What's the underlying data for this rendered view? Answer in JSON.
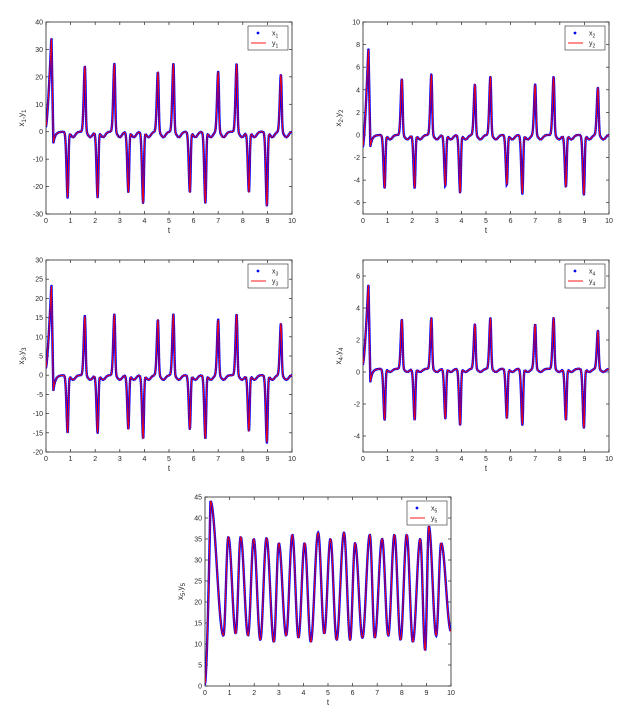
{
  "chart_data": [
    {
      "type": "line",
      "xlabel": "t",
      "ylabel": "x1,y1",
      "ylabel_var": "x",
      "ylabel_sub": "1",
      "xlim": [
        0,
        10
      ],
      "ylim": [
        -30,
        40
      ],
      "xticks": [
        "0",
        "1",
        "2",
        "3",
        "4",
        "5",
        "6",
        "7",
        "8",
        "9",
        "10"
      ],
      "yticks": [
        "-30",
        "-20",
        "-10",
        "0",
        "10",
        "20",
        "30",
        "40"
      ],
      "legend": {
        "placement": "top-right",
        "entries": [
          {
            "var": "x",
            "sub": "1",
            "style": "dots",
            "color": "#0000ff"
          },
          {
            "var": "y",
            "sub": "1",
            "style": "line",
            "color": "#ff0000"
          }
        ]
      },
      "params": {
        "base": 0,
        "upAmp": 22,
        "downAmp": -23,
        "hump": -2,
        "init": {
          "t0": 0.0,
          "x0": 2,
          "tPeak": 0.22,
          "peak": 35,
          "tDip": 0.3,
          "dip": -4
        },
        "spikes": [
          {
            "t": 0.88,
            "v": -24
          },
          {
            "t": 1.58,
            "v": 24
          },
          {
            "t": 2.1,
            "v": -24
          },
          {
            "t": 2.78,
            "v": 25
          },
          {
            "t": 3.35,
            "v": -22
          },
          {
            "t": 3.95,
            "v": -26
          },
          {
            "t": 4.55,
            "v": 22
          },
          {
            "t": 5.18,
            "v": 25
          },
          {
            "t": 5.85,
            "v": -22
          },
          {
            "t": 6.48,
            "v": -26
          },
          {
            "t": 7.0,
            "v": 22
          },
          {
            "t": 7.75,
            "v": 25
          },
          {
            "t": 8.25,
            "v": -22
          },
          {
            "t": 8.98,
            "v": -27
          },
          {
            "t": 9.55,
            "v": 21
          }
        ]
      }
    },
    {
      "type": "line",
      "xlabel": "t",
      "ylabel": "x2,y2",
      "ylabel_var": "x",
      "ylabel_sub": "2",
      "xlim": [
        0,
        10
      ],
      "ylim": [
        -7,
        10
      ],
      "xticks": [
        "0",
        "1",
        "2",
        "3",
        "4",
        "5",
        "6",
        "7",
        "8",
        "9",
        "10"
      ],
      "yticks": [
        "-6",
        "-4",
        "-2",
        "0",
        "2",
        "4",
        "6",
        "8",
        "10"
      ],
      "legend": {
        "placement": "top-right",
        "entries": [
          {
            "var": "x",
            "sub": "2",
            "style": "dots",
            "color": "#0000ff"
          },
          {
            "var": "y",
            "sub": "2",
            "style": "line",
            "color": "#ff0000"
          }
        ]
      },
      "params": {
        "base": 0,
        "hump": -0.4,
        "init": {
          "t0": 0.0,
          "x0": -1,
          "tPeak": 0.22,
          "peak": 7.8,
          "tDip": 0.3,
          "dip": -1
        },
        "spikes": [
          {
            "t": 0.88,
            "v": -4.7
          },
          {
            "t": 1.58,
            "v": 5.0
          },
          {
            "t": 2.1,
            "v": -4.7
          },
          {
            "t": 2.78,
            "v": 5.4
          },
          {
            "t": 3.35,
            "v": -4.5
          },
          {
            "t": 3.95,
            "v": -5.1
          },
          {
            "t": 4.55,
            "v": 4.5
          },
          {
            "t": 5.18,
            "v": 5.2
          },
          {
            "t": 5.85,
            "v": -4.4
          },
          {
            "t": 6.48,
            "v": -5.2
          },
          {
            "t": 7.0,
            "v": 4.5
          },
          {
            "t": 7.75,
            "v": 5.2
          },
          {
            "t": 8.25,
            "v": -4.6
          },
          {
            "t": 8.98,
            "v": -5.3
          },
          {
            "t": 9.55,
            "v": 4.2
          }
        ]
      }
    },
    {
      "type": "line",
      "xlabel": "t",
      "ylabel": "x3,y3",
      "ylabel_var": "x",
      "ylabel_sub": "3",
      "xlim": [
        0,
        10
      ],
      "ylim": [
        -20,
        30
      ],
      "xticks": [
        "0",
        "1",
        "2",
        "3",
        "4",
        "5",
        "6",
        "7",
        "8",
        "9",
        "10"
      ],
      "yticks": [
        "-20",
        "-15",
        "-10",
        "-5",
        "0",
        "5",
        "10",
        "15",
        "20",
        "25",
        "30"
      ],
      "legend": {
        "placement": "top-right",
        "entries": [
          {
            "var": "x",
            "sub": "3",
            "style": "dots",
            "color": "#0000ff"
          },
          {
            "var": "y",
            "sub": "3",
            "style": "line",
            "color": "#ff0000"
          }
        ]
      },
      "params": {
        "base": 0,
        "hump": -1.2,
        "init": {
          "t0": 0.0,
          "x0": 2,
          "tPeak": 0.22,
          "peak": 24,
          "tDip": 0.3,
          "dip": -4
        },
        "spikes": [
          {
            "t": 0.88,
            "v": -15
          },
          {
            "t": 1.58,
            "v": 15.5
          },
          {
            "t": 2.1,
            "v": -15
          },
          {
            "t": 2.78,
            "v": 16
          },
          {
            "t": 3.35,
            "v": -14
          },
          {
            "t": 3.95,
            "v": -16.5
          },
          {
            "t": 4.55,
            "v": 14.5
          },
          {
            "t": 5.18,
            "v": 16
          },
          {
            "t": 5.85,
            "v": -14
          },
          {
            "t": 6.48,
            "v": -16.5
          },
          {
            "t": 7.0,
            "v": 14.5
          },
          {
            "t": 7.75,
            "v": 16
          },
          {
            "t": 8.25,
            "v": -14.5
          },
          {
            "t": 8.98,
            "v": -17.5
          },
          {
            "t": 9.55,
            "v": 13.5
          }
        ]
      }
    },
    {
      "type": "line",
      "xlabel": "t",
      "ylabel": "x4,y4",
      "ylabel_var": "x",
      "ylabel_sub": "4",
      "xlim": [
        0,
        10
      ],
      "ylim": [
        -5,
        7
      ],
      "xticks": [
        "0",
        "1",
        "2",
        "3",
        "4",
        "5",
        "6",
        "7",
        "8",
        "9",
        "10"
      ],
      "yticks": [
        "-4",
        "-2",
        "0",
        "2",
        "4",
        "6"
      ],
      "legend": {
        "placement": "top-right",
        "entries": [
          {
            "var": "x",
            "sub": "4",
            "style": "dots",
            "color": "#0000ff"
          },
          {
            "var": "y",
            "sub": "4",
            "style": "line",
            "color": "#ff0000"
          }
        ]
      },
      "params": {
        "base": 0.2,
        "hump": -0.2,
        "init": {
          "t0": 0.0,
          "x0": 0.5,
          "tPeak": 0.22,
          "peak": 5.6,
          "tDip": 0.3,
          "dip": -0.6
        },
        "spikes": [
          {
            "t": 0.88,
            "v": -3.0
          },
          {
            "t": 1.58,
            "v": 3.3
          },
          {
            "t": 2.1,
            "v": -3.0
          },
          {
            "t": 2.78,
            "v": 3.4
          },
          {
            "t": 3.35,
            "v": -2.9
          },
          {
            "t": 3.95,
            "v": -3.3
          },
          {
            "t": 4.55,
            "v": 3.0
          },
          {
            "t": 5.18,
            "v": 3.4
          },
          {
            "t": 5.85,
            "v": -2.9
          },
          {
            "t": 6.48,
            "v": -3.3
          },
          {
            "t": 7.0,
            "v": 3.0
          },
          {
            "t": 7.75,
            "v": 3.4
          },
          {
            "t": 8.25,
            "v": -3.0
          },
          {
            "t": 8.98,
            "v": -3.5
          },
          {
            "t": 9.55,
            "v": 2.6
          }
        ]
      }
    },
    {
      "type": "line",
      "xlabel": "t",
      "ylabel": "x5,y5",
      "ylabel_var": "x",
      "ylabel_sub": "5",
      "xlim": [
        0,
        10
      ],
      "ylim": [
        0,
        45
      ],
      "xticks": [
        "0",
        "1",
        "2",
        "3",
        "4",
        "5",
        "6",
        "7",
        "8",
        "9",
        "10"
      ],
      "yticks": [
        "0",
        "5",
        "10",
        "15",
        "20",
        "25",
        "30",
        "35",
        "40",
        "45"
      ],
      "legend": {
        "placement": "top-right",
        "entries": [
          {
            "var": "x",
            "sub": "5",
            "style": "dots",
            "color": "#0000ff"
          },
          {
            "var": "y",
            "sub": "5",
            "style": "line",
            "color": "#ff0000"
          }
        ]
      },
      "params": {
        "init": {
          "t0": 0.0,
          "x0": 0.5,
          "tPeak": 0.22,
          "peak": 44
        },
        "osc": {
          "peaks": [
            [
              0.95,
              35.5
            ],
            [
              1.45,
              35.5
            ],
            [
              1.98,
              35.0
            ],
            [
              2.5,
              35.2
            ],
            [
              3.0,
              34.0
            ],
            [
              3.55,
              36.0
            ],
            [
              4.05,
              34.0
            ],
            [
              4.6,
              36.5
            ],
            [
              5.1,
              35.0
            ],
            [
              5.65,
              36.5
            ],
            [
              6.1,
              34.0
            ],
            [
              6.7,
              36.0
            ],
            [
              7.2,
              35.0
            ],
            [
              7.7,
              36.0
            ],
            [
              8.2,
              36.0
            ],
            [
              8.75,
              35.0
            ],
            [
              9.1,
              38.0
            ],
            [
              9.6,
              34.0
            ]
          ],
          "troughs": [
            [
              0.75,
              12.0
            ],
            [
              1.25,
              12.5
            ],
            [
              1.75,
              12.0
            ],
            [
              2.25,
              11.0
            ],
            [
              2.8,
              10.5
            ],
            [
              3.3,
              12.0
            ],
            [
              3.8,
              11.5
            ],
            [
              4.3,
              10.5
            ],
            [
              4.85,
              12.5
            ],
            [
              5.35,
              11.0
            ],
            [
              5.9,
              11.0
            ],
            [
              6.4,
              11.5
            ],
            [
              6.9,
              11.5
            ],
            [
              7.45,
              12.0
            ],
            [
              7.95,
              11.0
            ],
            [
              8.45,
              10.5
            ],
            [
              8.95,
              8.5
            ],
            [
              9.4,
              12.0
            ],
            [
              10.0,
              13.0
            ]
          ]
        }
      }
    }
  ]
}
